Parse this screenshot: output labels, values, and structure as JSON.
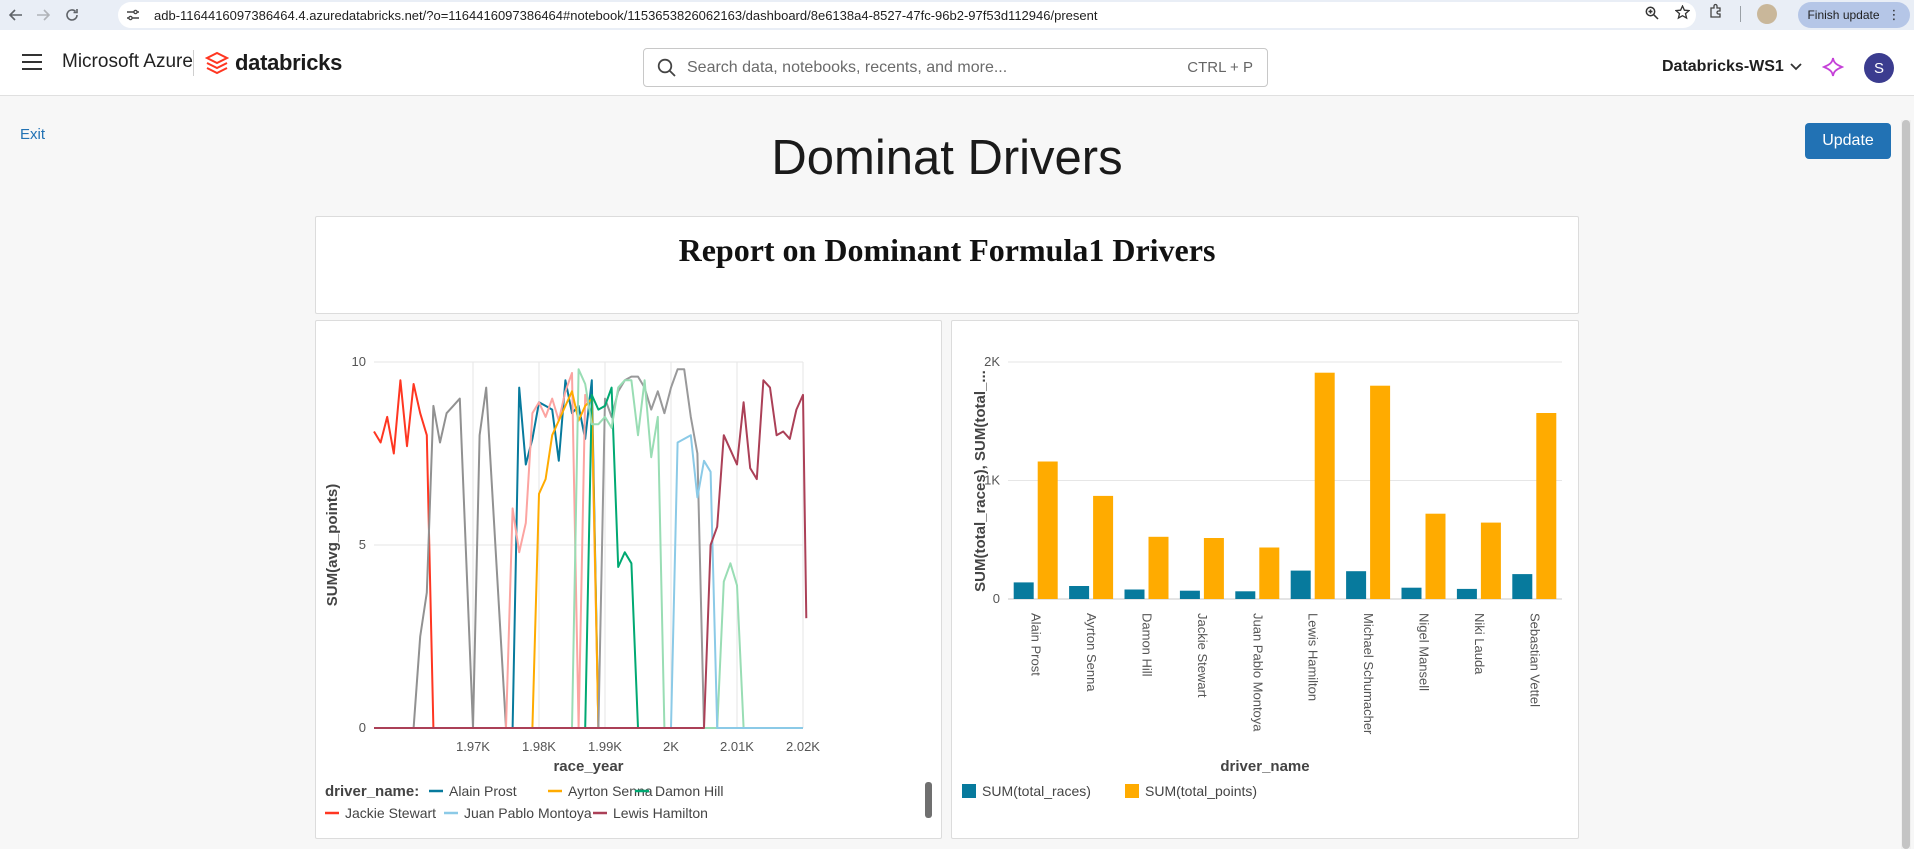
{
  "browser": {
    "url": "adb-1164416097386464.4.azuredatabricks.net/?o=1164416097386464#notebook/1153653826062163/dashboard/8e6138a4-8527-47fc-96b2-97f53d112946/present",
    "finish_update_label": "Finish update"
  },
  "header": {
    "azure_label": "Microsoft Azure",
    "brand_label": "databricks",
    "search_placeholder": "Search data, notebooks, recents, and more...",
    "search_shortcut": "CTRL + P",
    "workspace_label": "Databricks-WS1",
    "avatar_letter": "S"
  },
  "dashboard": {
    "exit_label": "Exit",
    "update_label": "Update",
    "title": "Dominat Drivers",
    "report_title": "Report on Dominant Formula1 Drivers"
  },
  "colors": {
    "accent": "#2272b4",
    "Alain Prost": "#077a9d",
    "Ayrton Senna": "#ffab00",
    "Damon Hill": "#00a972",
    "Jackie Stewart": "#ff3621",
    "Juan Pablo Montoya": "#8bcae7",
    "Lewis Hamilton": "#ab4057",
    "Michael Schumacher": "#99999a",
    "Nigel Mansell": "#fca4a1",
    "Niki Lauda": "#919191",
    "Sebastian Vettel": "#99ddb4",
    "total_races": "#077a9d",
    "total_points": "#ffab00"
  },
  "chart_data": [
    {
      "type": "line",
      "xlabel": "race_year",
      "ylabel": "SUM(avg_points)",
      "xlim": [
        1955,
        2020
      ],
      "ylim": [
        0,
        10
      ],
      "x_ticks": [
        "1.97K",
        "1.98K",
        "1.99K",
        "2K",
        "2.01K",
        "2.02K"
      ],
      "x_tick_values": [
        1970,
        1980,
        1990,
        2000,
        2010,
        2020
      ],
      "y_ticks": [
        "0",
        "5",
        "10"
      ],
      "y_tick_values": [
        0,
        5,
        10
      ],
      "legend_title": "driver_name:",
      "legend_entries": [
        "Alain Prost",
        "Ayrton Senna",
        "Damon Hill",
        "Jackie Stewart",
        "Juan Pablo Montoya",
        "Lewis Hamilton"
      ],
      "series": [
        {
          "name": "Jackie Stewart",
          "x": [
            1955,
            1956,
            1957,
            1958,
            1959,
            1960,
            1961,
            1962,
            1963,
            1964,
            1965,
            1966,
            1967,
            2020
          ],
          "y": [
            8.1,
            7.8,
            8.5,
            7.5,
            9.5,
            7.7,
            9.4,
            8.6,
            8,
            0,
            0,
            0,
            0,
            0
          ]
        },
        {
          "name": "Niki Lauda",
          "x": [
            1955,
            1961,
            1962,
            1963,
            1964,
            1965,
            1966,
            1967,
            1968,
            1969,
            1970,
            1971,
            1972,
            1975,
            1976,
            2020
          ],
          "y": [
            0,
            0,
            2.5,
            3.7,
            8.8,
            7.8,
            8.6,
            8.8,
            9,
            4.5,
            0,
            8,
            9.3,
            0,
            0,
            0
          ]
        },
        {
          "name": "Alain Prost",
          "x": [
            1955,
            1976,
            1977,
            1978,
            1979,
            1980,
            1981,
            1982,
            1983,
            1984,
            1985,
            1986,
            1987,
            1988,
            1989,
            1990,
            1992,
            1993,
            1994,
            2020
          ],
          "y": [
            0,
            0,
            9.3,
            7.2,
            7.9,
            8.9,
            8.8,
            8.7,
            7.3,
            9.5,
            8.6,
            8.8,
            7.9,
            9.5,
            0,
            0,
            0,
            0,
            0,
            0
          ]
        },
        {
          "name": "Nigel Mansell",
          "x": [
            1955,
            1975,
            1976,
            1977,
            1978,
            1979,
            1980,
            1981,
            1982,
            1983,
            1984,
            1985,
            1986,
            1987,
            1988,
            1989,
            1990,
            1991,
            1992,
            1993,
            2020
          ],
          "y": [
            0,
            0,
            6,
            4.8,
            5.6,
            8.6,
            8.9,
            8.5,
            9,
            8.4,
            9.2,
            9.7,
            0,
            9.1,
            8.5,
            0,
            0,
            0,
            0,
            0,
            0
          ]
        },
        {
          "name": "Ayrton Senna",
          "x": [
            1955,
            1979,
            1980,
            1981,
            1982,
            1983,
            1984,
            1985,
            1986,
            1987,
            1988,
            1989,
            1990,
            1991,
            1992,
            2020
          ],
          "y": [
            0,
            0,
            6.4,
            6.8,
            8,
            8.4,
            8.8,
            9.2,
            8.4,
            8.8,
            9.0,
            0,
            0,
            0,
            0,
            0
          ]
        },
        {
          "name": "Michael Schumacher",
          "x": [
            1955,
            1986,
            1987,
            1988,
            1989,
            1990,
            1991,
            1992,
            1993,
            1994,
            1995,
            1996,
            1997,
            1998,
            1999,
            2000,
            2001,
            2002,
            2003,
            2004,
            2005,
            2006,
            2020
          ],
          "y": [
            0,
            0,
            0,
            0,
            0,
            9,
            8.5,
            9.2,
            9.5,
            9.6,
            9.6,
            9.3,
            8.7,
            9.2,
            8.6,
            9.3,
            9.8,
            9.8,
            8.5,
            7.5,
            0,
            0,
            0
          ]
        },
        {
          "name": "Damon Hill",
          "x": [
            1955,
            1984,
            1985,
            1986,
            1987,
            1988,
            1989,
            1990,
            1991,
            1992,
            1993,
            1994,
            1995,
            1996,
            1997,
            1998,
            1999,
            2020
          ],
          "y": [
            0,
            0,
            0,
            0,
            0,
            9.1,
            8.7,
            8.8,
            9.3,
            4.4,
            4.8,
            4.5,
            0,
            0,
            0,
            0,
            0,
            0
          ]
        },
        {
          "name": "Sebastian Vettel",
          "x": [
            1955,
            1985,
            1986,
            1987,
            1988,
            1989,
            1990,
            1991,
            1992,
            1993,
            1994,
            1995,
            1996,
            1997,
            1998,
            1999,
            2000,
            2001,
            2002,
            2003,
            2004,
            2005,
            2006,
            2007,
            2008,
            2009,
            2010,
            2011,
            2012,
            2020
          ],
          "y": [
            0,
            0,
            9.8,
            9.4,
            8.3,
            8.3,
            8.5,
            8.2,
            9.3,
            9.5,
            9.5,
            8.0,
            9.5,
            7.4,
            8.5,
            0,
            0,
            0,
            0,
            0,
            0,
            0,
            0,
            0,
            4.0,
            4.5,
            3.9,
            0,
            0,
            0
          ]
        },
        {
          "name": "Juan Pablo Montoya",
          "x": [
            1955,
            1996,
            1997,
            1998,
            1999,
            2000,
            2001,
            2002,
            2003,
            2004,
            2005,
            2006,
            2007,
            2020
          ],
          "y": [
            0,
            0,
            0,
            0,
            0,
            0,
            7.8,
            7.9,
            8.0,
            6.3,
            7.3,
            7.0,
            0,
            0
          ]
        },
        {
          "name": "Lewis Hamilton",
          "x": [
            1955,
            2005,
            2006,
            2007,
            2008,
            2009,
            2010,
            2011,
            2012,
            2013,
            2014,
            2015,
            2016,
            2017,
            2018,
            2019,
            2020,
            2020.5
          ],
          "y": [
            0,
            0,
            5,
            5.5,
            8,
            7.6,
            7.2,
            8.9,
            7.1,
            6.8,
            9.5,
            9.3,
            8,
            8.1,
            7.9,
            8.7,
            9.1,
            3
          ]
        }
      ]
    },
    {
      "type": "bar",
      "xlabel": "driver_name",
      "ylabel": "SUM(total_races), SUM(total_...",
      "ylim": [
        0,
        2000
      ],
      "y_ticks": [
        "0",
        "1K",
        "2K"
      ],
      "y_tick_values": [
        0,
        1000,
        2000
      ],
      "categories": [
        "Alain Prost",
        "Ayrton Senna",
        "Damon Hill",
        "Jackie Stewart",
        "Juan Pablo Montoya",
        "Lewis Hamilton",
        "Michael Schumacher",
        "Nigel Mansell",
        "Niki Lauda",
        "Sebastian Vettel"
      ],
      "series": [
        {
          "name": "SUM(total_races)",
          "values": [
            140,
            110,
            80,
            70,
            65,
            240,
            235,
            95,
            85,
            210
          ]
        },
        {
          "name": "SUM(total_points)",
          "values": [
            1160,
            870,
            525,
            515,
            435,
            1910,
            1800,
            720,
            645,
            1570
          ]
        }
      ]
    }
  ]
}
